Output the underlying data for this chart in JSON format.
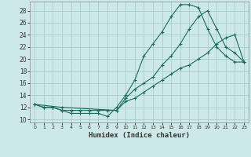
{
  "xlabel": "Humidex (Indice chaleur)",
  "bg_color": "#cce8e8",
  "grid_color": "#aacccc",
  "line_color": "#1a6b5a",
  "xlim": [
    -0.5,
    23.5
  ],
  "ylim": [
    9.5,
    29.5
  ],
  "xticks": [
    0,
    1,
    2,
    3,
    4,
    5,
    6,
    7,
    8,
    9,
    10,
    11,
    12,
    13,
    14,
    15,
    16,
    17,
    18,
    19,
    20,
    21,
    22,
    23
  ],
  "yticks": [
    10,
    12,
    14,
    16,
    18,
    20,
    22,
    24,
    26,
    28
  ],
  "curve1_x": [
    0,
    1,
    2,
    3,
    4,
    5,
    6,
    7,
    8,
    9,
    10,
    11,
    12,
    13,
    14,
    15,
    16,
    17,
    18,
    19,
    20,
    21,
    22,
    23
  ],
  "curve1_y": [
    12.5,
    12.0,
    12.0,
    11.5,
    11.0,
    11.0,
    11.0,
    11.0,
    10.5,
    12.0,
    14.0,
    16.5,
    20.5,
    22.5,
    24.5,
    27.0,
    29.0,
    29.0,
    28.5,
    25.0,
    22.0,
    20.5,
    19.5,
    19.5
  ],
  "curve2_x": [
    0,
    1,
    2,
    3,
    4,
    5,
    6,
    7,
    8,
    9,
    10,
    11,
    12,
    13,
    14,
    15,
    16,
    17,
    18,
    19,
    20,
    21,
    22,
    23
  ],
  "curve2_y": [
    12.5,
    12.0,
    12.0,
    11.5,
    11.5,
    11.5,
    11.5,
    11.5,
    11.5,
    11.5,
    13.0,
    13.5,
    14.5,
    15.5,
    16.5,
    17.5,
    18.5,
    19.0,
    20.0,
    21.0,
    22.5,
    23.5,
    24.0,
    19.5
  ],
  "curve3_x": [
    0,
    3,
    9,
    10,
    11,
    12,
    13,
    14,
    15,
    16,
    17,
    18,
    19,
    20,
    21,
    22,
    23
  ],
  "curve3_y": [
    12.5,
    12.0,
    11.5,
    13.5,
    15.0,
    16.0,
    17.0,
    19.0,
    20.5,
    22.5,
    25.0,
    27.0,
    28.0,
    25.0,
    22.0,
    21.0,
    19.5
  ]
}
